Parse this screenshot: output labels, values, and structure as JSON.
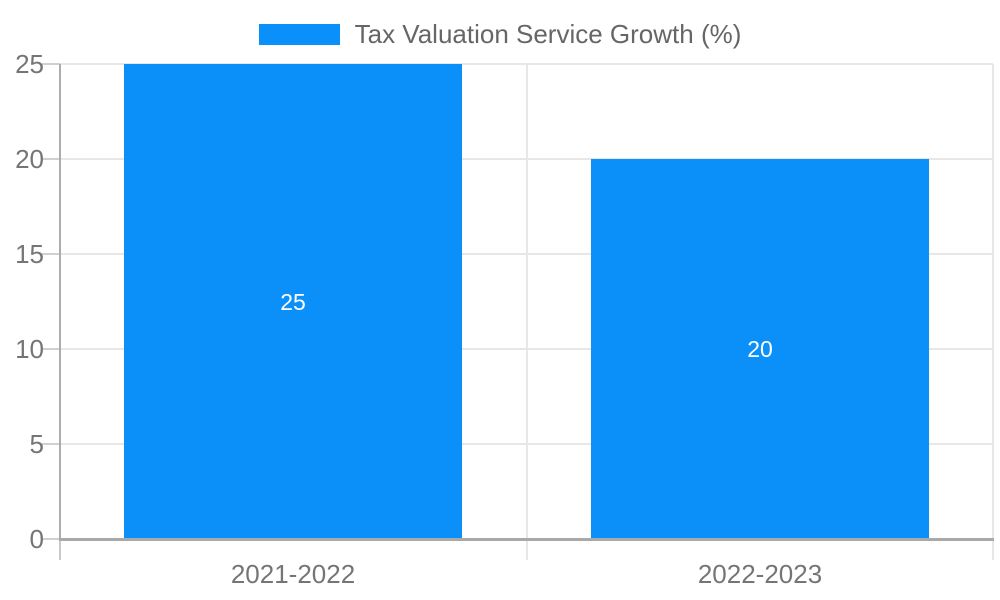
{
  "chart_data": {
    "type": "bar",
    "title": "Tax Valuation Service Growth (%)",
    "series": [
      {
        "name": "Tax Valuation Service Growth (%)",
        "values": [
          25,
          20
        ]
      }
    ],
    "categories": [
      "2021-2022",
      "2022-2023"
    ],
    "values": [
      25,
      20
    ],
    "bar_value_labels": [
      "25",
      "20"
    ],
    "xlabel": "",
    "ylabel": "",
    "ylim": [
      0,
      25
    ],
    "yticks": [
      0,
      5,
      10,
      15,
      20,
      25
    ],
    "grid": true,
    "legend_position": "top-center"
  },
  "colors": {
    "bar": "#0b90f9",
    "bar_label_text": "#ffffff",
    "grid_line": "#e7e7e7",
    "y_tick_mark": "#d0d0d0",
    "x_axis_line": "#a9a9a9",
    "y_axis_line": "#adadad",
    "axis_tick_extension": "#c9c9c9",
    "tick_label_text": "#757575",
    "legend_text": "#666666",
    "background": "#ffffff"
  }
}
